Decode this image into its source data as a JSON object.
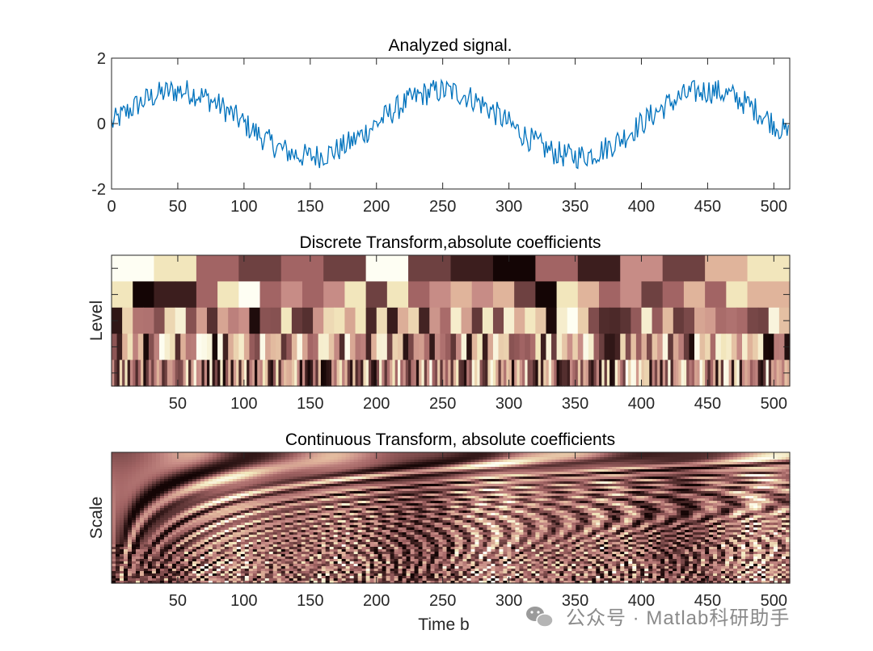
{
  "colors": {
    "line": "#0072BD",
    "axis": "#262626",
    "bg": "#ffffff",
    "cmap": [
      "#140505",
      "#3c1e1e",
      "#6e4141",
      "#a26464",
      "#c78c86",
      "#e0b49b",
      "#f2e6bc",
      "#fefef3"
    ]
  },
  "chart_data": [
    {
      "type": "line",
      "title": "Analyzed signal.",
      "xlabel": "",
      "ylabel": "",
      "xlim": [
        0,
        512
      ],
      "ylim": [
        -2,
        2
      ],
      "xticks": [
        "0",
        "50",
        "100",
        "150",
        "200",
        "250",
        "300",
        "350",
        "400",
        "450",
        "500"
      ],
      "yticks": [
        "2",
        "0",
        "-2"
      ],
      "xtick_values": [
        0,
        50,
        100,
        150,
        200,
        250,
        300,
        350,
        400,
        450,
        500
      ],
      "ytick_values": [
        2,
        0,
        -2
      ],
      "series": [
        {
          "name": "signal",
          "period": 200,
          "amplitude": 1.0,
          "noise": 0.3,
          "n": 512
        }
      ]
    },
    {
      "type": "heatmap",
      "title": "Discrete Transform,absolute coefficients",
      "xlabel": "",
      "ylabel": "Level",
      "xlim": [
        0,
        512
      ],
      "xticks": [
        "50",
        "100",
        "150",
        "200",
        "250",
        "300",
        "350",
        "400",
        "450",
        "500"
      ],
      "xtick_values": [
        50,
        100,
        150,
        200,
        250,
        300,
        350,
        400,
        450,
        500
      ],
      "levels": [
        {
          "level": 5,
          "cells": 16,
          "values": [
            7,
            6,
            3,
            2,
            3,
            2,
            7,
            2,
            1,
            0,
            3,
            1,
            4,
            2,
            5,
            6
          ]
        },
        {
          "level": 4,
          "cells": 32,
          "values": [
            6,
            0,
            1,
            1,
            3,
            6,
            7,
            3,
            4,
            3,
            4,
            6,
            2,
            6,
            3,
            4,
            5,
            4,
            5,
            2,
            0,
            6,
            5,
            3,
            4,
            2,
            3,
            5,
            3,
            6,
            5,
            5
          ]
        }
      ]
    },
    {
      "type": "heatmap",
      "title": "Continuous Transform, absolute coefficients",
      "xlabel": "Time b",
      "ylabel": "Scale",
      "xlim": [
        0,
        512
      ],
      "xticks": [
        "50",
        "100",
        "150",
        "200",
        "250",
        "300",
        "350",
        "400",
        "450",
        "500"
      ],
      "xtick_values": [
        50,
        100,
        150,
        200,
        250,
        300,
        350,
        400,
        450,
        500
      ]
    }
  ],
  "watermark": {
    "text": "公众号 · Matlab科研助手"
  }
}
